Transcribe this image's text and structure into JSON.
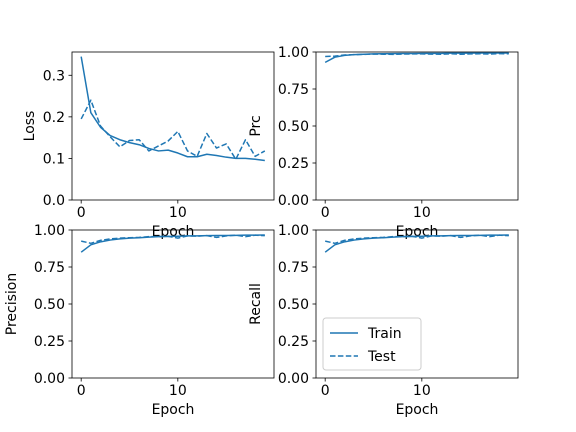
{
  "chart_data": [
    {
      "type": "line",
      "id": "loss",
      "xlabel": "Epoch",
      "ylabel": "Loss",
      "xlim": [
        -0.95,
        19.95
      ],
      "ylim": [
        0,
        0.356
      ],
      "xticks": [
        0,
        10
      ],
      "xtick_labels": [
        "0",
        "10"
      ],
      "yticks": [
        0,
        0.1,
        0.2,
        0.3
      ],
      "ytick_labels": [
        "0.0",
        "0.1",
        "0.2",
        "0.3"
      ],
      "x": [
        0,
        1,
        2,
        3,
        4,
        5,
        6,
        7,
        8,
        9,
        10,
        11,
        12,
        13,
        14,
        15,
        16,
        17,
        18,
        19
      ],
      "series": [
        {
          "name": "Train",
          "style": "solid",
          "values": [
            0.345,
            0.21,
            0.175,
            0.155,
            0.145,
            0.138,
            0.133,
            0.124,
            0.118,
            0.12,
            0.113,
            0.104,
            0.104,
            0.11,
            0.107,
            0.103,
            0.1,
            0.1,
            0.098,
            0.095
          ]
        },
        {
          "name": "Test",
          "style": "dashed",
          "values": [
            0.195,
            0.24,
            0.178,
            0.152,
            0.128,
            0.143,
            0.145,
            0.118,
            0.13,
            0.142,
            0.165,
            0.118,
            0.105,
            0.16,
            0.125,
            0.135,
            0.098,
            0.145,
            0.105,
            0.118
          ]
        }
      ]
    },
    {
      "type": "line",
      "id": "prc",
      "xlabel": "Epoch",
      "ylabel": "Prc",
      "xlim": [
        -0.95,
        19.95
      ],
      "ylim": [
        0,
        1.0
      ],
      "xticks": [
        0,
        10
      ],
      "xtick_labels": [
        "0",
        "10"
      ],
      "yticks": [
        0,
        0.25,
        0.5,
        0.75,
        1.0
      ],
      "ytick_labels": [
        "0.00",
        "0.25",
        "0.50",
        "0.75",
        "1.00"
      ],
      "x": [
        0,
        1,
        2,
        3,
        4,
        5,
        6,
        7,
        8,
        9,
        10,
        11,
        12,
        13,
        14,
        15,
        16,
        17,
        18,
        19
      ],
      "series": [
        {
          "name": "Train",
          "style": "solid",
          "values": [
            0.93,
            0.965,
            0.977,
            0.982,
            0.985,
            0.987,
            0.988,
            0.989,
            0.99,
            0.99,
            0.991,
            0.991,
            0.991,
            0.992,
            0.992,
            0.992,
            0.993,
            0.993,
            0.993,
            0.993
          ]
        },
        {
          "name": "Test",
          "style": "dashed",
          "values": [
            0.97,
            0.972,
            0.98,
            0.982,
            0.984,
            0.986,
            0.985,
            0.984,
            0.986,
            0.987,
            0.987,
            0.986,
            0.985,
            0.988,
            0.985,
            0.987,
            0.988,
            0.986,
            0.989,
            0.988
          ]
        }
      ]
    },
    {
      "type": "line",
      "id": "precision",
      "xlabel": "Epoch",
      "ylabel": "Precision",
      "xlim": [
        -0.95,
        19.95
      ],
      "ylim": [
        0,
        1.0
      ],
      "xticks": [
        0,
        10
      ],
      "xtick_labels": [
        "0",
        "10"
      ],
      "yticks": [
        0,
        0.25,
        0.5,
        0.75,
        1.0
      ],
      "ytick_labels": [
        "0.00",
        "0.25",
        "0.50",
        "0.75",
        "1.00"
      ],
      "x": [
        0,
        1,
        2,
        3,
        4,
        5,
        6,
        7,
        8,
        9,
        10,
        11,
        12,
        13,
        14,
        15,
        16,
        17,
        18,
        19
      ],
      "series": [
        {
          "name": "Train",
          "style": "solid",
          "values": [
            0.85,
            0.9,
            0.92,
            0.932,
            0.94,
            0.945,
            0.948,
            0.952,
            0.955,
            0.956,
            0.958,
            0.96,
            0.96,
            0.962,
            0.963,
            0.963,
            0.964,
            0.965,
            0.965,
            0.966
          ]
        },
        {
          "name": "Test",
          "style": "dashed",
          "values": [
            0.925,
            0.91,
            0.93,
            0.94,
            0.945,
            0.948,
            0.95,
            0.955,
            0.955,
            0.958,
            0.945,
            0.96,
            0.958,
            0.962,
            0.95,
            0.96,
            0.965,
            0.955,
            0.965,
            0.962
          ]
        }
      ]
    },
    {
      "type": "line",
      "id": "recall",
      "xlabel": "Epoch",
      "ylabel": "Recall",
      "xlim": [
        -0.95,
        19.95
      ],
      "ylim": [
        0,
        1.0
      ],
      "xticks": [
        0,
        10
      ],
      "xtick_labels": [
        "0",
        "10"
      ],
      "yticks": [
        0,
        0.25,
        0.5,
        0.75,
        1.0
      ],
      "ytick_labels": [
        "0.00",
        "0.25",
        "0.50",
        "0.75",
        "1.00"
      ],
      "legend": {
        "placement": "lower-left",
        "entries": [
          "Train",
          "Test"
        ]
      },
      "x": [
        0,
        1,
        2,
        3,
        4,
        5,
        6,
        7,
        8,
        9,
        10,
        11,
        12,
        13,
        14,
        15,
        16,
        17,
        18,
        19
      ],
      "series": [
        {
          "name": "Train",
          "style": "solid",
          "values": [
            0.85,
            0.9,
            0.92,
            0.932,
            0.94,
            0.945,
            0.948,
            0.952,
            0.955,
            0.956,
            0.958,
            0.96,
            0.96,
            0.962,
            0.963,
            0.963,
            0.964,
            0.965,
            0.965,
            0.966
          ]
        },
        {
          "name": "Test",
          "style": "dashed",
          "values": [
            0.925,
            0.91,
            0.93,
            0.94,
            0.945,
            0.948,
            0.95,
            0.955,
            0.955,
            0.958,
            0.945,
            0.96,
            0.958,
            0.962,
            0.95,
            0.96,
            0.965,
            0.955,
            0.965,
            0.962
          ]
        }
      ]
    }
  ],
  "colors": {
    "line": "#1f77b4",
    "axis": "#000000",
    "background": "#ffffff"
  }
}
